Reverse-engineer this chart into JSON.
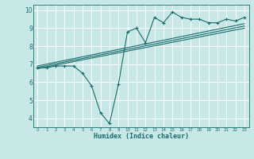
{
  "xlabel": "Humidex (Indice chaleur)",
  "background_color": "#c8e8e8",
  "grid_color": "#ffffff",
  "line_color": "#1a6b6b",
  "xlim": [
    -0.5,
    23.5
  ],
  "ylim": [
    3.5,
    10.3
  ],
  "xticks": [
    0,
    1,
    2,
    3,
    4,
    5,
    6,
    7,
    8,
    9,
    10,
    11,
    12,
    13,
    14,
    15,
    16,
    17,
    18,
    19,
    20,
    21,
    22,
    23
  ],
  "yticks": [
    4,
    5,
    6,
    7,
    8,
    9,
    10
  ],
  "main_x": [
    0,
    1,
    2,
    3,
    4,
    5,
    6,
    7,
    8,
    9,
    10,
    11,
    12,
    13,
    14,
    15,
    16,
    17,
    18,
    19,
    20,
    21,
    22,
    23
  ],
  "main_y": [
    6.8,
    6.8,
    6.9,
    6.9,
    6.9,
    6.5,
    5.8,
    4.3,
    3.7,
    5.9,
    8.8,
    9.0,
    8.2,
    9.6,
    9.3,
    9.9,
    9.6,
    9.5,
    9.5,
    9.3,
    9.3,
    9.5,
    9.4,
    9.6
  ],
  "line1_x": [
    0,
    23
  ],
  "line1_y": [
    6.75,
    9.0
  ],
  "line2_x": [
    0,
    23
  ],
  "line2_y": [
    6.82,
    9.12
  ],
  "line3_x": [
    0,
    23
  ],
  "line3_y": [
    6.9,
    9.25
  ]
}
